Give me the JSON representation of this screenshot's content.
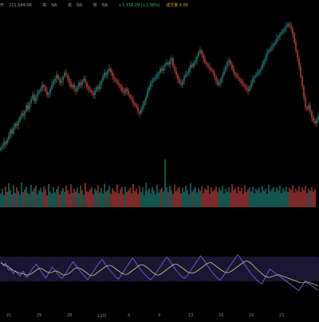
{
  "header": {
    "open_label": "开",
    "open_value": "211,544.08",
    "high_label": "高",
    "high_value": "NA",
    "low_label": "低",
    "low_value": "NA",
    "close_label": "收",
    "close_value": "NA",
    "change_text": "+1,316.29 (+1.38%)",
    "volume_text": "成交量 4.6K"
  },
  "colors": {
    "background": "#000000",
    "up": "#26a69a",
    "down": "#ef5350",
    "rsi_line": "#7b68ee",
    "rsi_ma": "#d8c28a",
    "rsi_band_fill": "#1a1530",
    "rsi_band_line": "#4b3f72"
  },
  "x_axis_labels": [
    "21",
    "25",
    "28",
    "12月",
    "4",
    "9",
    "13",
    "16",
    "19",
    "23"
  ],
  "chart_data": [
    {
      "type": "candlestick",
      "title": "",
      "series": [
        {
          "close": [
            100,
            101,
            103,
            102,
            104,
            106,
            109,
            107,
            110,
            112,
            111,
            113,
            115,
            117,
            116,
            118,
            121,
            119,
            122,
            124,
            126,
            123,
            125,
            127,
            128,
            129,
            131,
            130,
            128,
            126,
            127,
            129,
            131,
            133,
            134,
            136,
            134,
            132,
            133,
            135,
            137,
            136,
            134,
            132,
            130,
            131,
            129,
            128,
            130,
            132,
            131,
            133,
            134,
            132,
            130,
            129,
            128,
            127,
            126,
            128,
            130,
            129,
            131,
            133,
            135,
            137,
            136,
            138,
            139,
            137,
            135,
            134,
            133,
            132,
            131,
            130,
            128,
            127,
            129,
            128,
            126,
            125,
            124,
            122,
            121,
            120,
            118,
            117,
            119,
            121,
            123,
            125,
            128,
            130,
            132,
            133,
            134,
            135,
            136,
            137,
            139,
            138,
            140,
            141,
            142,
            141,
            143,
            144,
            140,
            138,
            136,
            134,
            132,
            131,
            133,
            135,
            136,
            137,
            139,
            141,
            140,
            142,
            143,
            145,
            147,
            148,
            146,
            144,
            142,
            141,
            140,
            139,
            138,
            137,
            135,
            133,
            131,
            132,
            134,
            136,
            138,
            140,
            142,
            143,
            141,
            139,
            137,
            136,
            135,
            134,
            133,
            132,
            131,
            130,
            129,
            128,
            130,
            132,
            134,
            135,
            136,
            137,
            138,
            139,
            141,
            143,
            145,
            147,
            148,
            149,
            150,
            151,
            152,
            154,
            155,
            156,
            157,
            158,
            159,
            160,
            161,
            160,
            159,
            156,
            152,
            148,
            144,
            140,
            135,
            130,
            125,
            120,
            119,
            121,
            118,
            115,
            113,
            112,
            114,
            116
          ]
        }
      ],
      "volume": [
        40,
        55,
        35,
        60,
        45,
        70,
        50,
        38,
        65,
        42,
        58,
        48,
        36,
        72,
        44,
        52,
        60,
        41,
        39,
        66,
        47,
        55,
        63,
        38,
        49,
        57,
        44,
        61,
        52,
        35,
        68,
        46,
        40,
        59,
        43,
        53,
        62,
        37,
        48,
        56,
        45,
        64,
        50,
        39,
        67,
        42,
        54,
        46,
        58,
        41,
        63,
        49,
        36,
        71,
        47,
        44,
        52,
        60,
        38,
        55,
        49,
        65,
        43,
        57,
        40,
        69,
        46,
        51,
        62,
        39,
        56,
        48,
        44,
        66,
        41,
        53,
        59,
        37,
        61,
        45,
        50,
        57,
        42,
        68,
        47,
        54,
        39,
        63,
        44,
        58,
        36,
        72,
        48,
        55,
        42,
        60,
        49,
        38,
        65,
        43,
        52,
        57,
        46,
        140,
        58,
        44,
        62,
        51,
        39,
        66,
        47,
        54,
        60,
        41,
        57,
        45,
        63,
        49,
        38,
        70,
        46,
        53,
        59,
        43,
        56,
        48,
        61,
        42,
        55,
        50,
        64,
        39,
        58,
        47,
        52,
        60,
        44,
        57,
        49,
        63,
        41,
        54,
        46,
        59,
        43,
        68,
        50,
        55,
        42,
        61,
        47,
        56,
        39,
        64,
        45,
        52,
        58,
        46,
        60,
        41,
        54,
        49,
        57,
        43,
        62,
        48,
        55,
        40,
        66,
        47,
        53,
        59,
        44,
        58,
        49,
        63,
        42,
        56,
        48,
        60,
        45,
        57,
        51,
        65,
        43,
        54,
        47,
        61,
        44,
        58,
        50,
        62,
        42,
        55,
        48,
        59,
        46,
        52
      ],
      "ylim": [
        110,
        165
      ]
    },
    {
      "type": "line",
      "title": "",
      "series": [
        {
          "values": [
            62,
            58,
            55,
            60,
            52,
            48,
            50,
            45,
            42,
            47,
            44,
            40,
            38,
            43,
            46,
            41,
            36,
            39,
            44,
            48,
            52,
            55,
            58,
            54,
            50,
            46,
            42,
            38,
            35,
            40,
            45,
            49,
            53,
            50,
            47,
            43,
            39,
            36,
            34,
            38,
            42,
            46,
            50,
            55,
            59,
            62,
            58,
            54,
            50,
            47,
            44,
            41,
            38,
            35,
            32,
            36,
            40,
            44,
            48,
            52,
            56,
            60,
            63,
            66,
            62,
            58,
            54,
            50,
            47,
            44,
            41,
            38,
            35,
            33,
            37,
            41,
            45,
            49,
            53,
            57,
            61,
            65,
            68,
            64,
            60,
            56,
            52,
            48,
            45,
            42,
            39,
            36,
            34,
            32,
            35,
            38,
            42,
            46,
            50,
            54,
            58,
            62,
            66,
            70,
            67,
            63,
            59,
            55,
            51,
            47,
            44,
            41,
            38,
            36,
            34,
            37,
            40,
            44,
            48,
            52,
            56,
            60,
            64,
            68,
            72,
            69,
            65,
            61,
            57,
            53,
            49,
            45,
            42,
            39,
            36,
            33,
            31,
            34,
            38,
            42,
            46,
            50,
            54,
            58,
            62,
            66,
            70,
            74,
            71,
            67,
            63,
            59,
            55,
            51,
            47,
            43,
            40,
            37,
            34,
            31,
            29,
            27,
            25,
            30,
            35,
            40,
            45,
            50,
            48,
            46,
            44,
            42,
            40,
            38,
            36,
            34,
            32,
            30,
            28,
            26,
            24,
            22,
            20,
            18,
            16,
            14,
            18,
            22,
            26,
            30,
            28,
            26,
            24,
            22,
            20,
            18,
            16,
            15
          ]
        },
        {
          "values": [
            60,
            59,
            57,
            56,
            55,
            53,
            51,
            49,
            47,
            46,
            45,
            44,
            43,
            42,
            42,
            41,
            40,
            40,
            41,
            42,
            44,
            46,
            48,
            50,
            51,
            51,
            50,
            48,
            46,
            45,
            44,
            44,
            45,
            46,
            47,
            46,
            45,
            43,
            41,
            40,
            40,
            41,
            42,
            44,
            46,
            49,
            51,
            52,
            52,
            51,
            50,
            48,
            46,
            44,
            42,
            40,
            39,
            39,
            40,
            42,
            44,
            46,
            48,
            50,
            52,
            54,
            55,
            56,
            56,
            55,
            53,
            51,
            49,
            47,
            45,
            43,
            42,
            41,
            41,
            42,
            44,
            46,
            48,
            50,
            52,
            54,
            56,
            57,
            57,
            56,
            54,
            52,
            50,
            47,
            45,
            43,
            41,
            40,
            40,
            41,
            43,
            45,
            47,
            49,
            51,
            53,
            55,
            57,
            58,
            58,
            57,
            55,
            53,
            51,
            49,
            47,
            45,
            44,
            43,
            43,
            44,
            45,
            47,
            49,
            51,
            53,
            55,
            57,
            59,
            60,
            61,
            60,
            58,
            56,
            54,
            52,
            50,
            48,
            46,
            45,
            44,
            44,
            45,
            46,
            48,
            50,
            52,
            54,
            56,
            58,
            60,
            62,
            63,
            63,
            62,
            60,
            58,
            55,
            52,
            50,
            47,
            45,
            42,
            40,
            38,
            37,
            36,
            36,
            37,
            38,
            39,
            40,
            40,
            40,
            39,
            38,
            37,
            36,
            35,
            34,
            33,
            32,
            31,
            30,
            29,
            28,
            27,
            27,
            27,
            28,
            28,
            28,
            27,
            26,
            25,
            24,
            23,
            22
          ]
        }
      ],
      "ylim": [
        0,
        100
      ],
      "bands": [
        30,
        70
      ]
    }
  ]
}
